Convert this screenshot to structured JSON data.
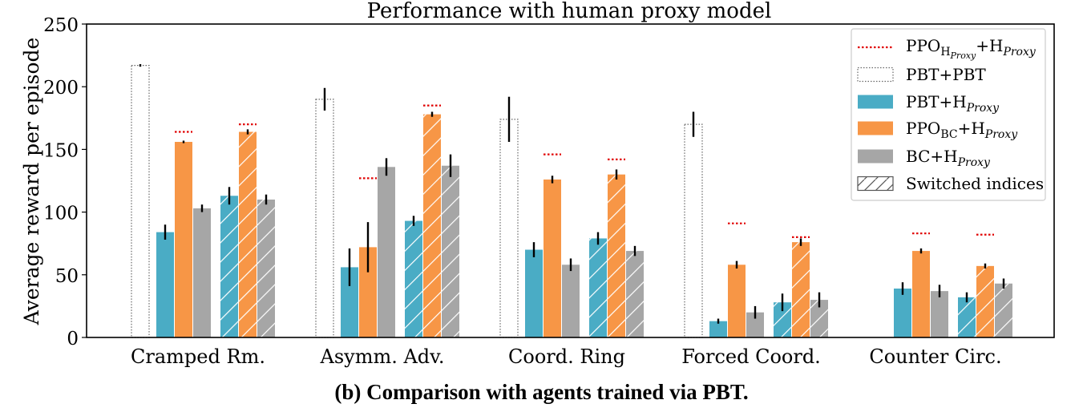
{
  "chart_data": {
    "type": "bar",
    "title": "Performance with human proxy model",
    "ylabel": "Average reward per episode",
    "xlabel": "",
    "ylim": [
      0,
      250
    ],
    "yticks": [
      0,
      50,
      100,
      150,
      200,
      250
    ],
    "categories": [
      "Cramped Rm.",
      "Asymm. Adv.",
      "Coord. Ring",
      "Forced Coord.",
      "Counter Circ."
    ],
    "legend_position": "top-right",
    "legend": [
      {
        "key": "ppo_hproxy",
        "label": "PPO",
        "sub": "H",
        "subsub": "Proxy",
        "plus": "+H",
        "plus_sub": "Proxy",
        "style": "dotted-line"
      },
      {
        "key": "pbt_pbt",
        "label": "PBT+PBT",
        "style": "dotted-box"
      },
      {
        "key": "pbt_hproxy",
        "label": "PBT+H",
        "sub": "Proxy",
        "style": "fill"
      },
      {
        "key": "ppo_bc_hproxy",
        "label": "PPO",
        "sub": "BC",
        "plus": "+H",
        "plus_sub": "Proxy",
        "style": "fill"
      },
      {
        "key": "bc_hproxy",
        "label": "BC+H",
        "sub": "Proxy",
        "style": "fill"
      },
      {
        "key": "switched",
        "label": "Switched indices",
        "style": "hatch"
      }
    ],
    "series": [
      {
        "key": "pbt_pbt",
        "values": [
          217,
          190,
          174,
          170,
          0
        ],
        "err": [
          1,
          9,
          18,
          10,
          0
        ]
      },
      {
        "key": "pbt_hproxy",
        "values": [
          84,
          56,
          70,
          13,
          39
        ],
        "err": [
          6,
          15,
          6,
          2,
          5
        ]
      },
      {
        "key": "ppo_bc_hproxy",
        "values": [
          156,
          72,
          126,
          58,
          69
        ],
        "err": [
          1,
          20,
          3,
          3,
          2
        ]
      },
      {
        "key": "bc_hproxy",
        "values": [
          103,
          136,
          58,
          20,
          37
        ],
        "err": [
          3,
          7,
          5,
          5,
          5
        ]
      },
      {
        "key": "pbt_hproxy_switched",
        "values": [
          113,
          93,
          79,
          28,
          32
        ],
        "err": [
          7,
          4,
          5,
          7,
          4
        ]
      },
      {
        "key": "ppo_bc_hproxy_switched",
        "values": [
          164,
          178,
          130,
          76,
          57
        ],
        "err": [
          2,
          2,
          4,
          3,
          2
        ]
      },
      {
        "key": "bc_hproxy_switched",
        "values": [
          110,
          137,
          69,
          30,
          43
        ],
        "err": [
          4,
          9,
          4,
          6,
          4
        ]
      }
    ],
    "ppo_hproxy_reference": [
      164,
      127,
      146,
      91,
      83
    ],
    "ppo_hproxy_reference_switched": [
      170,
      185,
      142,
      80,
      82
    ],
    "colors": {
      "pbt_hproxy": "#4aacc5",
      "ppo_bc_hproxy": "#f79646",
      "bc_hproxy": "#a6a6a6",
      "reference": "#e00000",
      "dotted_box": "#666666",
      "errorbar": "#000000",
      "hatch": "#ffffff"
    }
  },
  "caption": "(b) Comparison with agents trained via PBT."
}
